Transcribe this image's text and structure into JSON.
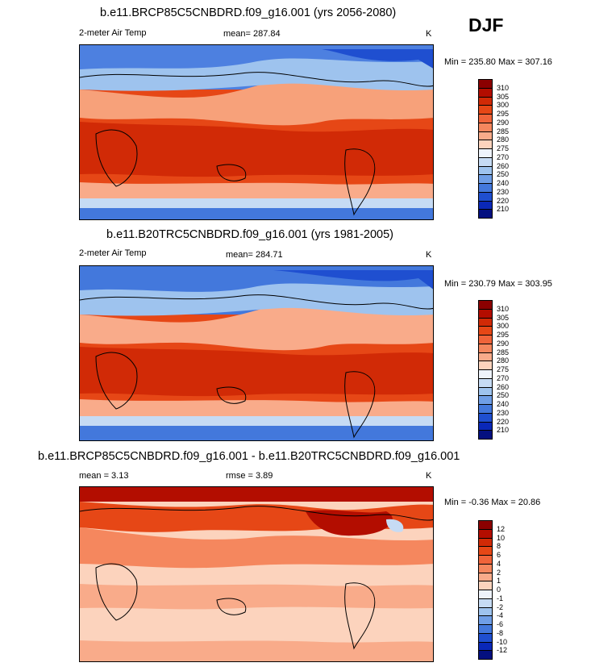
{
  "season": "DJF",
  "panels": [
    {
      "id": "rcp85",
      "title": "b.e11.BRCP85C5CNBDRD.f09_g16.001 (yrs 2056-2080)",
      "left_label": "2-meter Air Temp",
      "center_label": "mean= 287.84",
      "right_label": "K",
      "minmax": "Min = 235.80 Max = 307.16",
      "colorbar_labels": [
        "310",
        "305",
        "300",
        "295",
        "290",
        "285",
        "280",
        "275",
        "270",
        "260",
        "250",
        "240",
        "230",
        "220",
        "210"
      ],
      "colorbar_colors": [
        "#8b0000",
        "#b30d00",
        "#d12a06",
        "#e64716",
        "#f0643a",
        "#f5875e",
        "#f9ab8a",
        "#fcd3bd",
        "#eef3fb",
        "#c6dbf4",
        "#9ec3ee",
        "#6f9ee6",
        "#4378dc",
        "#1f4fd0",
        "#0a28b8",
        "#041080"
      ]
    },
    {
      "id": "b20",
      "title": "b.e11.B20TRC5CNBDRD.f09_g16.001 (yrs 1981-2005)",
      "left_label": "2-meter Air Temp",
      "center_label": "mean= 284.71",
      "right_label": "K",
      "minmax": "Min = 230.79 Max = 303.95",
      "colorbar_labels": [
        "310",
        "305",
        "300",
        "295",
        "290",
        "285",
        "280",
        "275",
        "270",
        "260",
        "250",
        "240",
        "230",
        "220",
        "210"
      ],
      "colorbar_colors": [
        "#8b0000",
        "#b30d00",
        "#d12a06",
        "#e64716",
        "#f0643a",
        "#f5875e",
        "#f9ab8a",
        "#fcd3bd",
        "#eef3fb",
        "#c6dbf4",
        "#9ec3ee",
        "#6f9ee6",
        "#4378dc",
        "#1f4fd0",
        "#0a28b8",
        "#041080"
      ]
    },
    {
      "id": "diff",
      "title": "b.e11.BRCP85C5CNBDRD.f09_g16.001 - b.e11.B20TRC5CNBDRD.f09_g16.001",
      "left_label": "mean =   3.13",
      "center_label": "rmse =   3.89",
      "right_label": "K",
      "minmax": "Min =  -0.36 Max =  20.86",
      "colorbar_labels": [
        "12",
        "10",
        "8",
        "6",
        "4",
        "2",
        "1",
        "0",
        "-1",
        "-2",
        "-4",
        "-6",
        "-8",
        "-10",
        "-12"
      ],
      "colorbar_colors": [
        "#8b0000",
        "#b30d00",
        "#d12a06",
        "#e64716",
        "#f0643a",
        "#f5875e",
        "#f9ab8a",
        "#fcd3bd",
        "#eef3fb",
        "#c6dbf4",
        "#9ec3ee",
        "#6f9ee6",
        "#4378dc",
        "#1f4fd0",
        "#0a28b8",
        "#041080"
      ]
    }
  ]
}
